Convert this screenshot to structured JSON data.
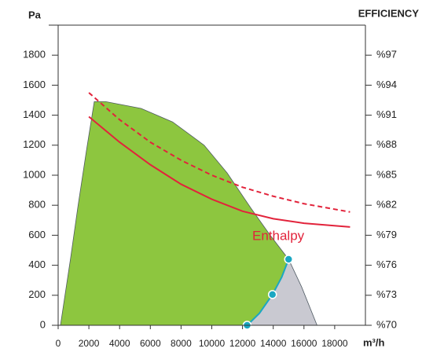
{
  "chart_data": {
    "type": "area",
    "y_label": "Pa",
    "y2_label": "EFFICIENCY",
    "x_label": "m³/h",
    "annotation": "Enthalpy",
    "xlim": [
      0,
      20000
    ],
    "xticks": [
      0,
      2000,
      4000,
      6000,
      8000,
      10000,
      12000,
      14000,
      16000,
      18000
    ],
    "ylim": [
      0,
      2000
    ],
    "yticks": [
      0,
      200,
      400,
      600,
      800,
      1000,
      1200,
      1400,
      1600,
      1800
    ],
    "y2lim": [
      70,
      100
    ],
    "y2ticks": [
      {
        "value": 70,
        "label": "%70"
      },
      {
        "value": 73,
        "label": "%73"
      },
      {
        "value": 76,
        "label": "%76"
      },
      {
        "value": 79,
        "label": "%79"
      },
      {
        "value": 82,
        "label": "%82"
      },
      {
        "value": 85,
        "label": "%85"
      },
      {
        "value": 88,
        "label": "%88"
      },
      {
        "value": 91,
        "label": "%91"
      },
      {
        "value": 94,
        "label": "%94"
      },
      {
        "value": 97,
        "label": "%97"
      }
    ],
    "series": [
      {
        "type": "area",
        "color": "#8dc63f",
        "x": [
          150,
          800,
          1300,
          1850,
          2350,
          3100,
          5400,
          7450,
          9500,
          11000,
          12550,
          13800,
          15000,
          14550,
          13950,
          13100,
          12300
        ],
        "values": [
          0,
          440,
          800,
          1170,
          1490,
          1490,
          1445,
          1355,
          1200,
          1015,
          780,
          600,
          440,
          320,
          205,
          80,
          0
        ]
      },
      {
        "type": "area",
        "color": "#c9c9d1",
        "x": [
          15000,
          15850,
          16850,
          12300,
          13100,
          13950,
          14550
        ],
        "values": [
          440,
          255,
          0,
          0,
          80,
          205,
          320
        ]
      },
      {
        "type": "line",
        "color": "#e2233b",
        "x": [
          2000,
          4000,
          6000,
          8000,
          10000,
          12000,
          14000,
          16000,
          19000
        ],
        "values": [
          1390,
          1220,
          1070,
          940,
          840,
          760,
          710,
          680,
          655
        ]
      },
      {
        "type": "dashed",
        "color": "#e2233b",
        "x": [
          2000,
          4000,
          6000,
          8000,
          10000,
          12000,
          14000,
          16000,
          19000
        ],
        "values": [
          1550,
          1370,
          1220,
          1100,
          1000,
          920,
          860,
          810,
          755
        ]
      },
      {
        "type": "line",
        "color": "#1aa7c2",
        "x": [
          12300,
          13100,
          13950,
          14550,
          15000
        ],
        "values": [
          0,
          80,
          205,
          320,
          440
        ]
      },
      {
        "type": "scatter",
        "color": "#1aa7c2",
        "x": [
          12300,
          13950,
          15000
        ],
        "values": [
          0,
          205,
          440
        ]
      }
    ]
  }
}
